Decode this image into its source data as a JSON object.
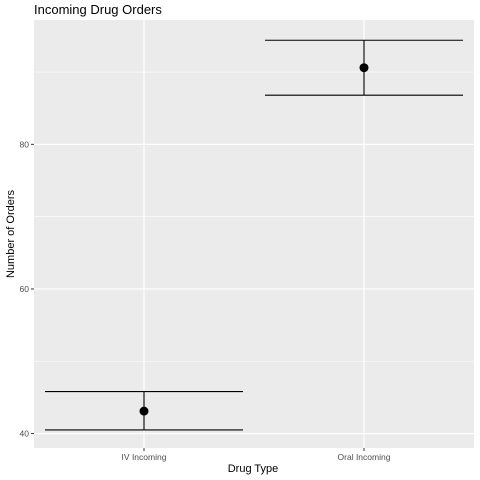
{
  "chart_data": {
    "type": "scatter",
    "title": "Incoming Drug Orders",
    "xlabel": "Drug Type",
    "ylabel": "Number of Orders",
    "categories": [
      "IV Incoming",
      "Oral Incoming"
    ],
    "series": [
      {
        "values": [
          43.1,
          90.6
        ],
        "error_low": [
          40.5,
          86.8
        ],
        "error_high": [
          45.8,
          94.4
        ]
      }
    ],
    "ylim": [
      38.0,
      97.2
    ],
    "yticks": [
      40,
      60,
      80
    ],
    "grid": true,
    "panel_color": "#ebebeb",
    "grid_color": "#ffffff",
    "point_color": "#000000"
  }
}
